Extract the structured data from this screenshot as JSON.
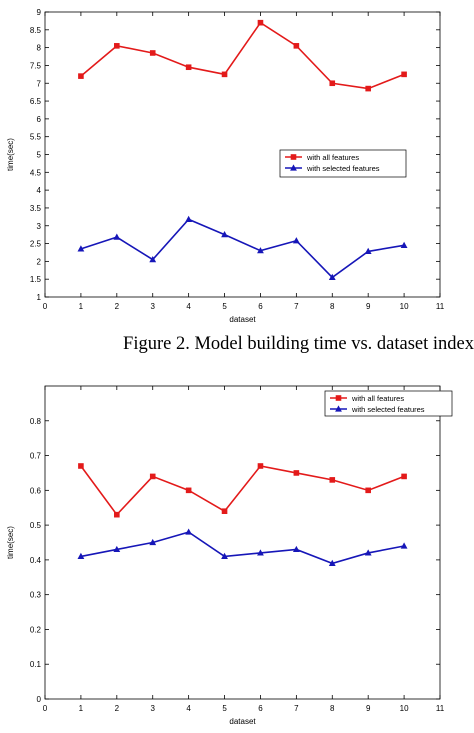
{
  "caption": "Figure 2. Model building time vs. dataset index",
  "colors": {
    "all_features": "#e31a1a",
    "selected_features": "#1616b8"
  },
  "chart_data": [
    {
      "type": "line",
      "title": "",
      "xlabel": "dataset",
      "ylabel": "time(sec)",
      "xlim": [
        0,
        11
      ],
      "ylim": [
        1,
        9
      ],
      "xticks": [
        "0",
        "1",
        "2",
        "3",
        "4",
        "5",
        "6",
        "7",
        "8",
        "9",
        "10",
        "11"
      ],
      "yticks": [
        "1",
        "1.5",
        "2",
        "2.5",
        "3",
        "3.5",
        "4",
        "4.5",
        "5",
        "5.5",
        "6",
        "6.5",
        "7",
        "7.5",
        "8",
        "8.5",
        "9"
      ],
      "x": [
        1,
        2,
        3,
        4,
        5,
        6,
        7,
        8,
        9,
        10
      ],
      "legend_position": "center-right",
      "series": [
        {
          "name": "with all features",
          "marker": "square",
          "values": [
            7.2,
            8.05,
            7.85,
            7.45,
            7.25,
            8.7,
            8.05,
            7.0,
            6.85,
            7.25
          ]
        },
        {
          "name": "with selected features",
          "marker": "triangle",
          "values": [
            2.35,
            2.68,
            2.05,
            3.18,
            2.75,
            2.3,
            2.58,
            1.55,
            2.28,
            2.45
          ]
        }
      ]
    },
    {
      "type": "line",
      "title": "",
      "xlabel": "dataset",
      "ylabel": "time(sec)",
      "xlim": [
        0,
        11
      ],
      "ylim": [
        0,
        0.9
      ],
      "xticks": [
        "0",
        "1",
        "2",
        "3",
        "4",
        "5",
        "6",
        "7",
        "8",
        "9",
        "10",
        "11"
      ],
      "yticks": [
        "0",
        "0.1",
        "0.2",
        "0.3",
        "0.4",
        "0.5",
        "0.6",
        "0.7",
        "0.8"
      ],
      "x": [
        1,
        2,
        3,
        4,
        5,
        6,
        7,
        8,
        9,
        10
      ],
      "legend_position": "top-right",
      "series": [
        {
          "name": "with all features",
          "marker": "square",
          "values": [
            0.67,
            0.53,
            0.64,
            0.6,
            0.54,
            0.67,
            0.65,
            0.63,
            0.6,
            0.64
          ]
        },
        {
          "name": "with selected features",
          "marker": "triangle",
          "values": [
            0.41,
            0.43,
            0.45,
            0.48,
            0.41,
            0.42,
            0.43,
            0.39,
            0.42,
            0.44
          ]
        }
      ]
    }
  ]
}
